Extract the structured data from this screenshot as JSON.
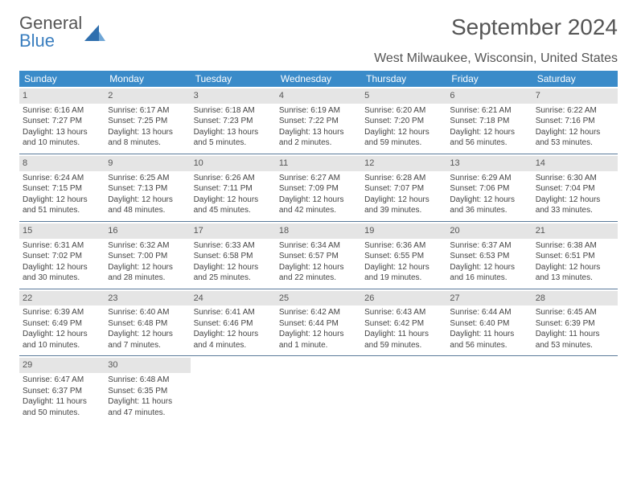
{
  "brand": {
    "word1": "General",
    "word2": "Blue"
  },
  "title": "September 2024",
  "location": "West Milwaukee, Wisconsin, United States",
  "colors": {
    "header_bg": "#3a8bc9",
    "header_text": "#ffffff",
    "band_bg": "#e5e5e5",
    "rule": "#5a7a9a",
    "brand_blue": "#3a7ebf",
    "text": "#555555"
  },
  "weekdays": [
    "Sunday",
    "Monday",
    "Tuesday",
    "Wednesday",
    "Thursday",
    "Friday",
    "Saturday"
  ],
  "weeks": [
    [
      {
        "num": "1",
        "sunrise": "Sunrise: 6:16 AM",
        "sunset": "Sunset: 7:27 PM",
        "daylight": "Daylight: 13 hours and 10 minutes."
      },
      {
        "num": "2",
        "sunrise": "Sunrise: 6:17 AM",
        "sunset": "Sunset: 7:25 PM",
        "daylight": "Daylight: 13 hours and 8 minutes."
      },
      {
        "num": "3",
        "sunrise": "Sunrise: 6:18 AM",
        "sunset": "Sunset: 7:23 PM",
        "daylight": "Daylight: 13 hours and 5 minutes."
      },
      {
        "num": "4",
        "sunrise": "Sunrise: 6:19 AM",
        "sunset": "Sunset: 7:22 PM",
        "daylight": "Daylight: 13 hours and 2 minutes."
      },
      {
        "num": "5",
        "sunrise": "Sunrise: 6:20 AM",
        "sunset": "Sunset: 7:20 PM",
        "daylight": "Daylight: 12 hours and 59 minutes."
      },
      {
        "num": "6",
        "sunrise": "Sunrise: 6:21 AM",
        "sunset": "Sunset: 7:18 PM",
        "daylight": "Daylight: 12 hours and 56 minutes."
      },
      {
        "num": "7",
        "sunrise": "Sunrise: 6:22 AM",
        "sunset": "Sunset: 7:16 PM",
        "daylight": "Daylight: 12 hours and 53 minutes."
      }
    ],
    [
      {
        "num": "8",
        "sunrise": "Sunrise: 6:24 AM",
        "sunset": "Sunset: 7:15 PM",
        "daylight": "Daylight: 12 hours and 51 minutes."
      },
      {
        "num": "9",
        "sunrise": "Sunrise: 6:25 AM",
        "sunset": "Sunset: 7:13 PM",
        "daylight": "Daylight: 12 hours and 48 minutes."
      },
      {
        "num": "10",
        "sunrise": "Sunrise: 6:26 AM",
        "sunset": "Sunset: 7:11 PM",
        "daylight": "Daylight: 12 hours and 45 minutes."
      },
      {
        "num": "11",
        "sunrise": "Sunrise: 6:27 AM",
        "sunset": "Sunset: 7:09 PM",
        "daylight": "Daylight: 12 hours and 42 minutes."
      },
      {
        "num": "12",
        "sunrise": "Sunrise: 6:28 AM",
        "sunset": "Sunset: 7:07 PM",
        "daylight": "Daylight: 12 hours and 39 minutes."
      },
      {
        "num": "13",
        "sunrise": "Sunrise: 6:29 AM",
        "sunset": "Sunset: 7:06 PM",
        "daylight": "Daylight: 12 hours and 36 minutes."
      },
      {
        "num": "14",
        "sunrise": "Sunrise: 6:30 AM",
        "sunset": "Sunset: 7:04 PM",
        "daylight": "Daylight: 12 hours and 33 minutes."
      }
    ],
    [
      {
        "num": "15",
        "sunrise": "Sunrise: 6:31 AM",
        "sunset": "Sunset: 7:02 PM",
        "daylight": "Daylight: 12 hours and 30 minutes."
      },
      {
        "num": "16",
        "sunrise": "Sunrise: 6:32 AM",
        "sunset": "Sunset: 7:00 PM",
        "daylight": "Daylight: 12 hours and 28 minutes."
      },
      {
        "num": "17",
        "sunrise": "Sunrise: 6:33 AM",
        "sunset": "Sunset: 6:58 PM",
        "daylight": "Daylight: 12 hours and 25 minutes."
      },
      {
        "num": "18",
        "sunrise": "Sunrise: 6:34 AM",
        "sunset": "Sunset: 6:57 PM",
        "daylight": "Daylight: 12 hours and 22 minutes."
      },
      {
        "num": "19",
        "sunrise": "Sunrise: 6:36 AM",
        "sunset": "Sunset: 6:55 PM",
        "daylight": "Daylight: 12 hours and 19 minutes."
      },
      {
        "num": "20",
        "sunrise": "Sunrise: 6:37 AM",
        "sunset": "Sunset: 6:53 PM",
        "daylight": "Daylight: 12 hours and 16 minutes."
      },
      {
        "num": "21",
        "sunrise": "Sunrise: 6:38 AM",
        "sunset": "Sunset: 6:51 PM",
        "daylight": "Daylight: 12 hours and 13 minutes."
      }
    ],
    [
      {
        "num": "22",
        "sunrise": "Sunrise: 6:39 AM",
        "sunset": "Sunset: 6:49 PM",
        "daylight": "Daylight: 12 hours and 10 minutes."
      },
      {
        "num": "23",
        "sunrise": "Sunrise: 6:40 AM",
        "sunset": "Sunset: 6:48 PM",
        "daylight": "Daylight: 12 hours and 7 minutes."
      },
      {
        "num": "24",
        "sunrise": "Sunrise: 6:41 AM",
        "sunset": "Sunset: 6:46 PM",
        "daylight": "Daylight: 12 hours and 4 minutes."
      },
      {
        "num": "25",
        "sunrise": "Sunrise: 6:42 AM",
        "sunset": "Sunset: 6:44 PM",
        "daylight": "Daylight: 12 hours and 1 minute."
      },
      {
        "num": "26",
        "sunrise": "Sunrise: 6:43 AM",
        "sunset": "Sunset: 6:42 PM",
        "daylight": "Daylight: 11 hours and 59 minutes."
      },
      {
        "num": "27",
        "sunrise": "Sunrise: 6:44 AM",
        "sunset": "Sunset: 6:40 PM",
        "daylight": "Daylight: 11 hours and 56 minutes."
      },
      {
        "num": "28",
        "sunrise": "Sunrise: 6:45 AM",
        "sunset": "Sunset: 6:39 PM",
        "daylight": "Daylight: 11 hours and 53 minutes."
      }
    ],
    [
      {
        "num": "29",
        "sunrise": "Sunrise: 6:47 AM",
        "sunset": "Sunset: 6:37 PM",
        "daylight": "Daylight: 11 hours and 50 minutes."
      },
      {
        "num": "30",
        "sunrise": "Sunrise: 6:48 AM",
        "sunset": "Sunset: 6:35 PM",
        "daylight": "Daylight: 11 hours and 47 minutes."
      },
      null,
      null,
      null,
      null,
      null
    ]
  ]
}
